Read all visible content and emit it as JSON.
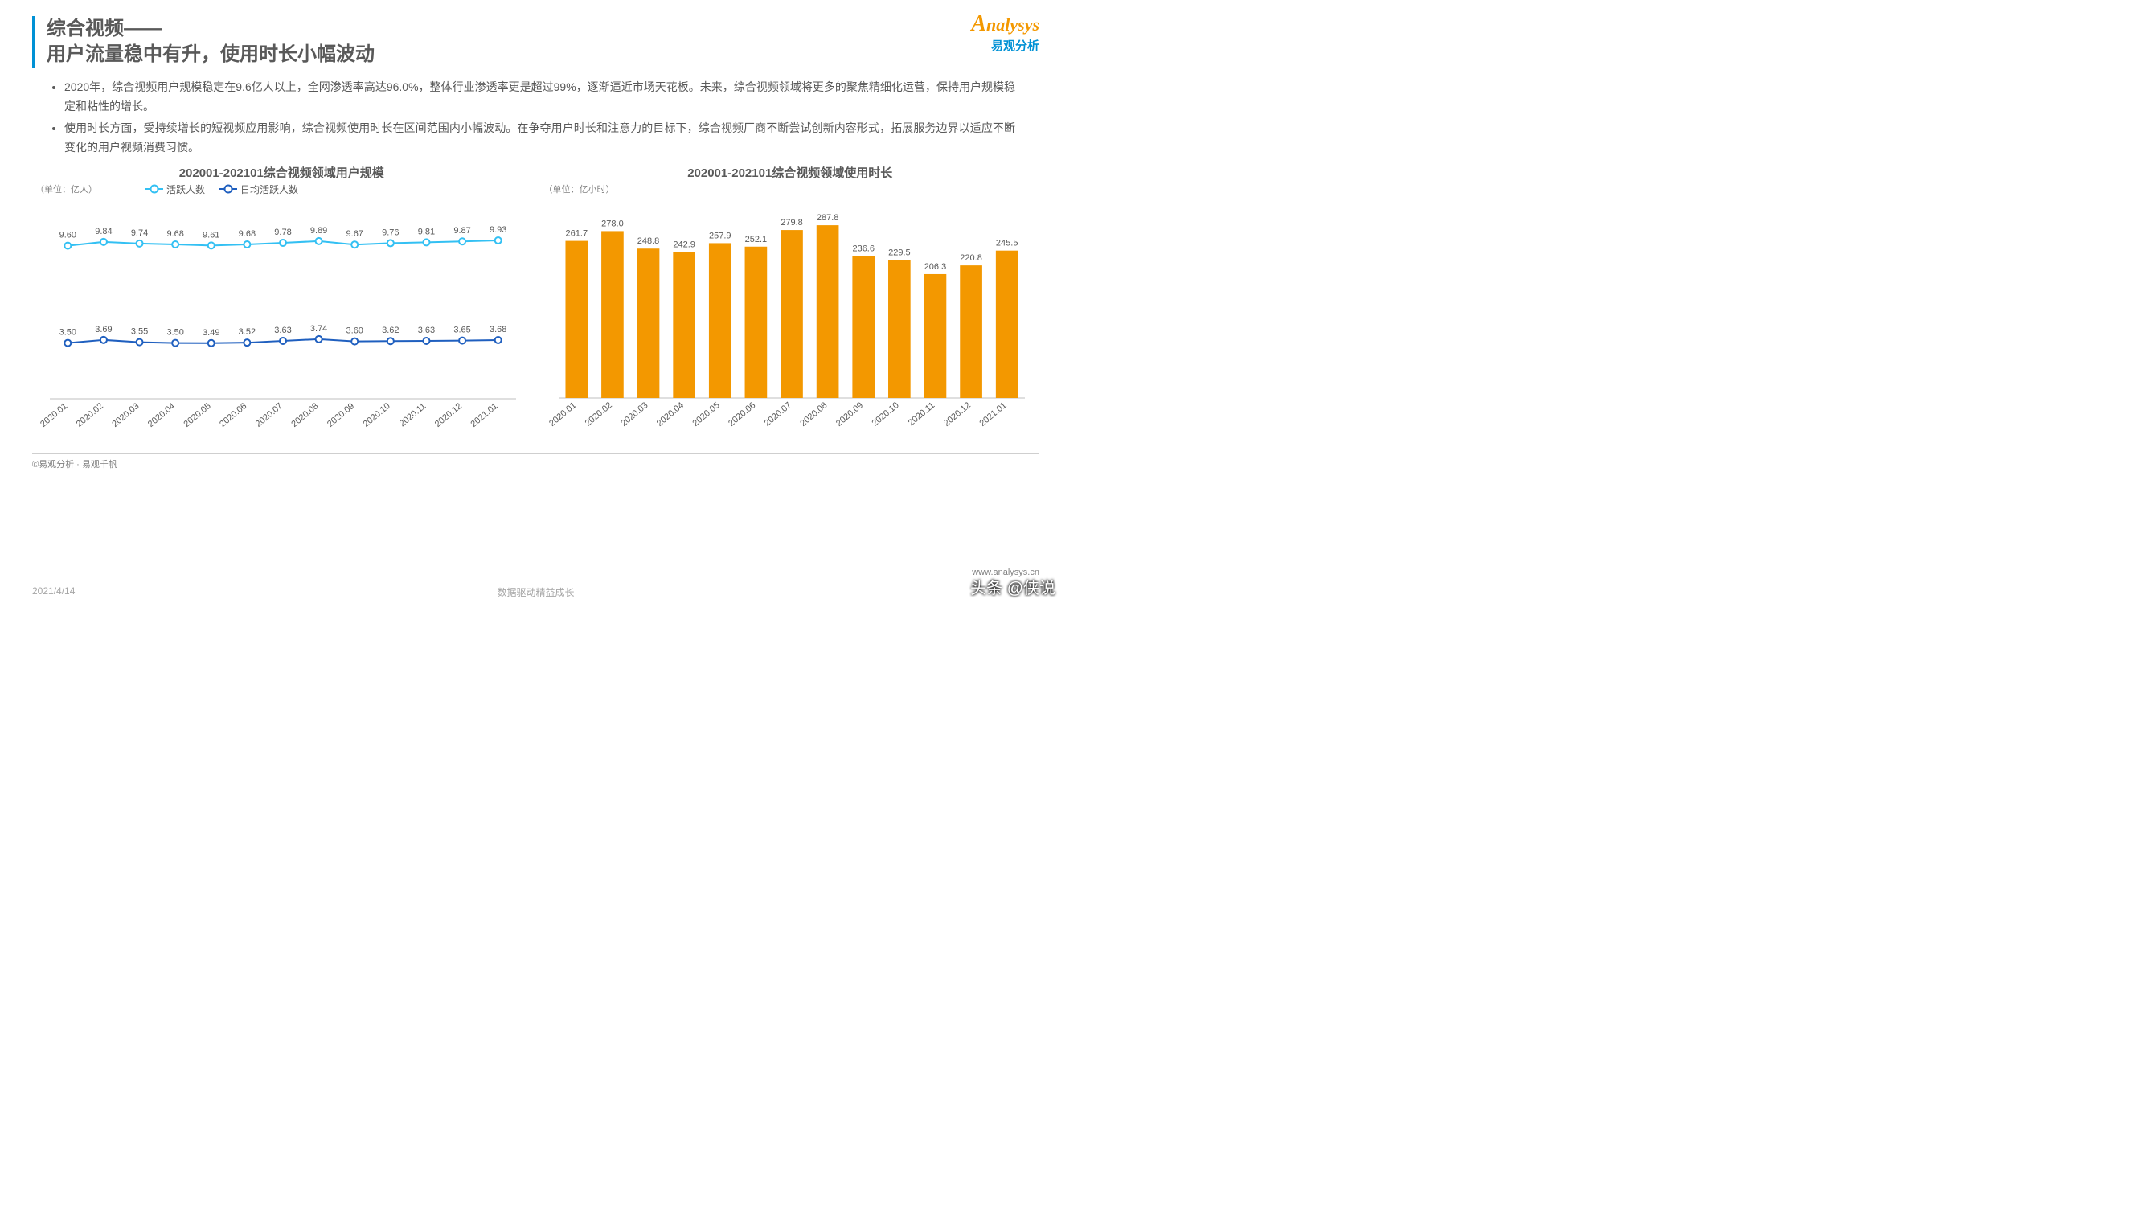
{
  "title": {
    "line1": "综合视频——",
    "line2": "用户流量稳中有升，使用时长小幅波动"
  },
  "logo": {
    "brand": "Analysys",
    "sub": "易观分析"
  },
  "bullets": [
    "2020年，综合视频用户规模稳定在9.6亿人以上，全网渗透率高达96.0%，整体行业渗透率更是超过99%，逐渐逼近市场天花板。未来，综合视频领域将更多的聚焦精细化运营，保持用户规模稳定和粘性的增长。",
    "使用时长方面，受持续增长的短视频应用影响，综合视频使用时长在区间范围内小幅波动。在争夺用户时长和注意力的目标下，综合视频厂商不断尝试创新内容形式，拓展服务边界以适应不断变化的用户视频消费习惯。"
  ],
  "categories": [
    "2020.01",
    "2020.02",
    "2020.03",
    "2020.04",
    "2020.05",
    "2020.06",
    "2020.07",
    "2020.08",
    "2020.09",
    "2020.10",
    "2020.11",
    "2020.12",
    "2021.01"
  ],
  "line_chart": {
    "title": "202001-202101综合视频领域用户规模",
    "unit": "（单位：亿人）",
    "legend": {
      "s1": "活跃人数",
      "s2": "日均活跃人数"
    },
    "series1": {
      "values": [
        9.6,
        9.84,
        9.74,
        9.68,
        9.61,
        9.68,
        9.78,
        9.89,
        9.67,
        9.76,
        9.81,
        9.87,
        9.93
      ],
      "color": "#33c0f3",
      "marker_fill": "#ffffff",
      "marker_r": 4,
      "line_w": 2
    },
    "series2": {
      "values": [
        3.5,
        3.69,
        3.55,
        3.5,
        3.49,
        3.52,
        3.63,
        3.74,
        3.6,
        3.62,
        3.63,
        3.65,
        3.68
      ],
      "color": "#1f5fbf",
      "marker_fill": "#ffffff",
      "marker_r": 4,
      "line_w": 2
    },
    "ylim": [
      0,
      12
    ],
    "label_color": "#595959",
    "label_fontsize": 11,
    "axis_color": "#bfbfbf",
    "background": "#ffffff"
  },
  "bar_chart": {
    "title": "202001-202101综合视频领域使用时长",
    "unit": "（单位：亿小时）",
    "values": [
      261.7,
      278.0,
      248.8,
      242.9,
      257.9,
      252.1,
      279.8,
      287.8,
      236.6,
      229.5,
      206.3,
      220.8,
      245.5
    ],
    "bar_color": "#f39800",
    "ylim": [
      0,
      300
    ],
    "bar_width": 0.62,
    "label_color": "#595959",
    "label_fontsize": 11,
    "axis_color": "#bfbfbf",
    "background": "#ffffff"
  },
  "copyright": "©易观分析 · 易观千帆",
  "footer": {
    "date": "2021/4/14",
    "center": "数据驱动精益成长"
  },
  "url": "www.analysys.cn",
  "overlay": "头条 @侠说"
}
